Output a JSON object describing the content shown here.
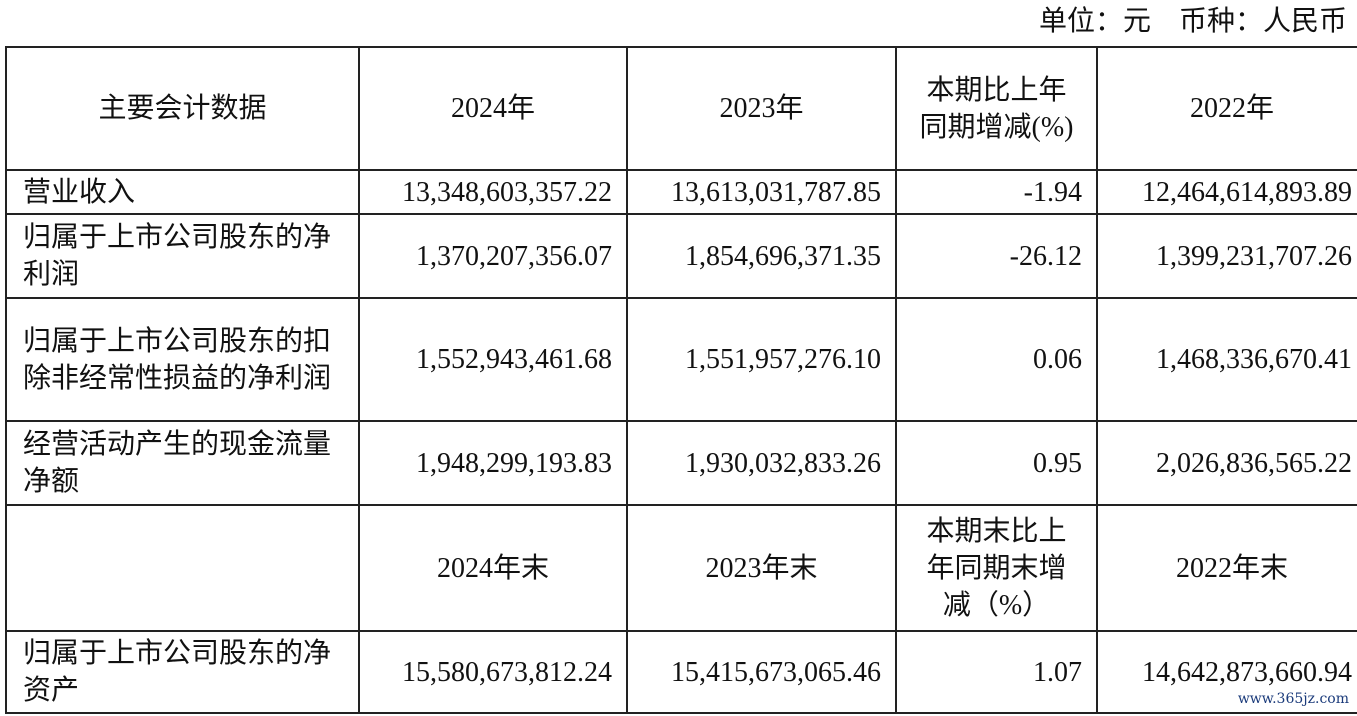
{
  "unit_note": "单位：元    币种：人民币",
  "header1": {
    "col0": "主要会计数据",
    "col1": "2024年",
    "col2": "2023年",
    "col3": "本期比上年同期增减(%)",
    "col4": "2022年"
  },
  "rows1": [
    {
      "label": "营业收入",
      "v2024": "13,348,603,357.22",
      "v2023": "13,613,031,787.85",
      "change": "-1.94",
      "v2022": "12,464,614,893.89"
    },
    {
      "label": "归属于上市公司股东的净利润",
      "v2024": "1,370,207,356.07",
      "v2023": "1,854,696,371.35",
      "change": "-26.12",
      "v2022": "1,399,231,707.26"
    },
    {
      "label": "归属于上市公司股东的扣除非经常性损益的净利润",
      "v2024": "1,552,943,461.68",
      "v2023": "1,551,957,276.10",
      "change": "0.06",
      "v2022": "1,468,336,670.41"
    },
    {
      "label": "经营活动产生的现金流量净额",
      "v2024": "1,948,299,193.83",
      "v2023": "1,930,032,833.26",
      "change": "0.95",
      "v2022": "2,026,836,565.22"
    }
  ],
  "header2": {
    "col0": "",
    "col1": "2024年末",
    "col2": "2023年末",
    "col3": "本期末比上年同期末增减（%）",
    "col4": "2022年末"
  },
  "rows2": [
    {
      "label": "归属于上市公司股东的净资产",
      "v2024": "15,580,673,812.24",
      "v2023": "15,415,673,065.46",
      "change": "1.07",
      "v2022": "14,642,873,660.94"
    }
  ],
  "watermark": "www.365jz.com"
}
